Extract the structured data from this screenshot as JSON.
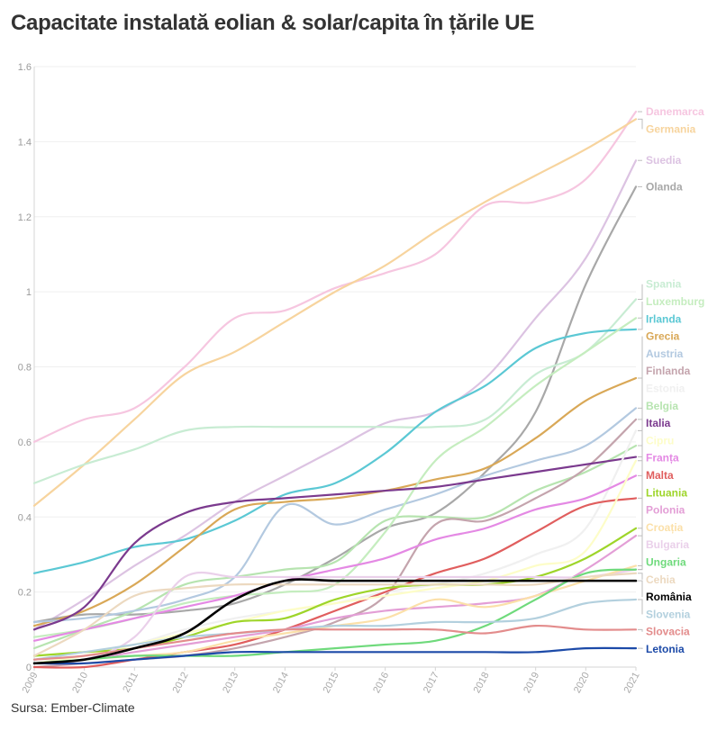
{
  "title": "Capacitate instalată eolian & solar/capita în țările UE",
  "source": "Sursa: Ember-Climate",
  "chart_data": {
    "type": "line",
    "title": "Capacitate instalată eolian & solar/capita în țările UE",
    "xlabel": "",
    "ylabel": "",
    "ylim": [
      0,
      1.6
    ],
    "yticks": [
      0,
      0.2,
      0.4,
      0.6,
      0.8,
      1,
      1.2,
      1.4,
      1.6
    ],
    "ytick_labels": [
      "0",
      "0.2",
      "0.4",
      "0.6",
      "0.8",
      "1",
      "1.2",
      "1.4",
      "1.6"
    ],
    "x": [
      "2009",
      "2010",
      "2011",
      "2012",
      "2013",
      "2014",
      "2015",
      "2016",
      "2017",
      "2018",
      "2019",
      "2020",
      "2021"
    ],
    "grid": true,
    "legend": "right",
    "series": [
      {
        "name": "Danemarca",
        "color": "#f6c6e0",
        "values": [
          0.6,
          0.66,
          0.69,
          0.8,
          0.93,
          0.95,
          1.01,
          1.05,
          1.1,
          1.23,
          1.24,
          1.3,
          1.48
        ]
      },
      {
        "name": "Germania",
        "color": "#f7d49e",
        "values": [
          0.43,
          0.54,
          0.66,
          0.78,
          0.84,
          0.92,
          1.0,
          1.07,
          1.16,
          1.24,
          1.31,
          1.38,
          1.46
        ]
      },
      {
        "name": "Suedia",
        "color": "#dcc3e2",
        "values": [
          0.1,
          0.18,
          0.27,
          0.35,
          0.44,
          0.51,
          0.58,
          0.65,
          0.68,
          0.77,
          0.93,
          1.09,
          1.35
        ]
      },
      {
        "name": "Olanda",
        "color": "#a8a8a8",
        "values": [
          0.12,
          0.14,
          0.14,
          0.15,
          0.17,
          0.22,
          0.29,
          0.37,
          0.41,
          0.52,
          0.68,
          1.02,
          1.28
        ]
      },
      {
        "name": "Belgia",
        "color": "#b7e4b0",
        "values": [
          0.05,
          0.1,
          0.15,
          0.22,
          0.24,
          0.26,
          0.28,
          0.39,
          0.4,
          0.4,
          0.47,
          0.52,
          0.59
        ]
      },
      {
        "name": "Spania",
        "color": "#c8ecd3",
        "values": [
          0.49,
          0.54,
          0.58,
          0.63,
          0.64,
          0.64,
          0.64,
          0.64,
          0.64,
          0.66,
          0.78,
          0.84,
          0.98
        ]
      },
      {
        "name": "Irlanda",
        "color": "#5bc8d4",
        "values": [
          0.25,
          0.28,
          0.32,
          0.34,
          0.39,
          0.46,
          0.49,
          0.57,
          0.68,
          0.75,
          0.85,
          0.89,
          0.9
        ]
      },
      {
        "name": "Grecia",
        "color": "#d9a857",
        "values": [
          0.11,
          0.15,
          0.22,
          0.32,
          0.42,
          0.44,
          0.45,
          0.47,
          0.5,
          0.53,
          0.61,
          0.71,
          0.77
        ]
      },
      {
        "name": "Austria",
        "color": "#b3c9e0",
        "values": [
          0.12,
          0.13,
          0.15,
          0.18,
          0.24,
          0.43,
          0.38,
          0.42,
          0.46,
          0.51,
          0.55,
          0.59,
          0.69
        ]
      },
      {
        "name": "Finlanda",
        "color": "#c4a4ad",
        "values": [
          0.0,
          0.01,
          0.02,
          0.03,
          0.05,
          0.08,
          0.12,
          0.19,
          0.38,
          0.39,
          0.45,
          0.53,
          0.66
        ]
      },
      {
        "name": "Luxemburg",
        "color": "#c5edbf",
        "values": [
          0.08,
          0.1,
          0.13,
          0.17,
          0.19,
          0.2,
          0.22,
          0.36,
          0.55,
          0.64,
          0.75,
          0.84,
          0.93
        ]
      },
      {
        "name": "Italia",
        "color": "#7b3a8e",
        "values": [
          0.1,
          0.16,
          0.33,
          0.41,
          0.44,
          0.45,
          0.46,
          0.47,
          0.48,
          0.5,
          0.52,
          0.54,
          0.56
        ]
      },
      {
        "name": "Estonia",
        "color": "#f0f0f0",
        "values": [
          0.01,
          0.03,
          0.06,
          0.1,
          0.13,
          0.15,
          0.17,
          0.2,
          0.22,
          0.25,
          0.3,
          0.37,
          0.63
        ]
      },
      {
        "name": "Franța",
        "color": "#e489e4",
        "values": [
          0.07,
          0.1,
          0.13,
          0.16,
          0.19,
          0.23,
          0.26,
          0.29,
          0.34,
          0.37,
          0.42,
          0.45,
          0.51
        ]
      },
      {
        "name": "Malta",
        "color": "#e05e5e",
        "values": [
          0.0,
          0.0,
          0.02,
          0.04,
          0.06,
          0.1,
          0.15,
          0.2,
          0.25,
          0.29,
          0.36,
          0.43,
          0.45
        ]
      },
      {
        "name": "Cipru",
        "color": "#fdfdc8",
        "values": [
          0.01,
          0.03,
          0.06,
          0.09,
          0.12,
          0.15,
          0.17,
          0.19,
          0.21,
          0.23,
          0.27,
          0.31,
          0.55
        ]
      },
      {
        "name": "Lituania",
        "color": "#9ed52a",
        "values": [
          0.03,
          0.04,
          0.05,
          0.08,
          0.12,
          0.13,
          0.18,
          0.21,
          0.22,
          0.22,
          0.24,
          0.29,
          0.37
        ]
      },
      {
        "name": "Polonia",
        "color": "#e39ed6",
        "values": [
          0.01,
          0.02,
          0.04,
          0.06,
          0.08,
          0.1,
          0.13,
          0.15,
          0.16,
          0.17,
          0.19,
          0.26,
          0.35
        ]
      },
      {
        "name": "Bulgaria",
        "color": "#ead0ea",
        "values": [
          0.01,
          0.02,
          0.08,
          0.24,
          0.24,
          0.24,
          0.24,
          0.24,
          0.24,
          0.24,
          0.24,
          0.24,
          0.26
        ]
      },
      {
        "name": "Croația",
        "color": "#fbe0a9",
        "values": [
          0.01,
          0.02,
          0.03,
          0.04,
          0.07,
          0.09,
          0.11,
          0.13,
          0.18,
          0.16,
          0.19,
          0.23,
          0.27
        ]
      },
      {
        "name": "Ungaria",
        "color": "#6fda7c",
        "values": [
          0.01,
          0.02,
          0.03,
          0.03,
          0.03,
          0.04,
          0.05,
          0.06,
          0.07,
          0.11,
          0.18,
          0.25,
          0.26
        ]
      },
      {
        "name": "Cehia",
        "color": "#ecd9c0",
        "values": [
          0.03,
          0.1,
          0.19,
          0.21,
          0.22,
          0.22,
          0.22,
          0.22,
          0.22,
          0.22,
          0.22,
          0.24,
          0.25
        ]
      },
      {
        "name": "România",
        "color": "#000000",
        "values": [
          0.01,
          0.02,
          0.05,
          0.09,
          0.18,
          0.23,
          0.23,
          0.23,
          0.23,
          0.23,
          0.23,
          0.23,
          0.23
        ]
      },
      {
        "name": "Slovenia",
        "color": "#b3d0de",
        "values": [
          0.02,
          0.04,
          0.06,
          0.08,
          0.09,
          0.1,
          0.11,
          0.11,
          0.12,
          0.12,
          0.13,
          0.17,
          0.18
        ]
      },
      {
        "name": "Slovacia",
        "color": "#e38c8c",
        "values": [
          0.02,
          0.03,
          0.05,
          0.07,
          0.09,
          0.1,
          0.1,
          0.1,
          0.1,
          0.09,
          0.11,
          0.1,
          0.1
        ]
      },
      {
        "name": "Letonia",
        "color": "#1c4aa8",
        "values": [
          0.01,
          0.01,
          0.02,
          0.03,
          0.04,
          0.04,
          0.04,
          0.04,
          0.04,
          0.04,
          0.04,
          0.05,
          0.05
        ]
      }
    ]
  }
}
